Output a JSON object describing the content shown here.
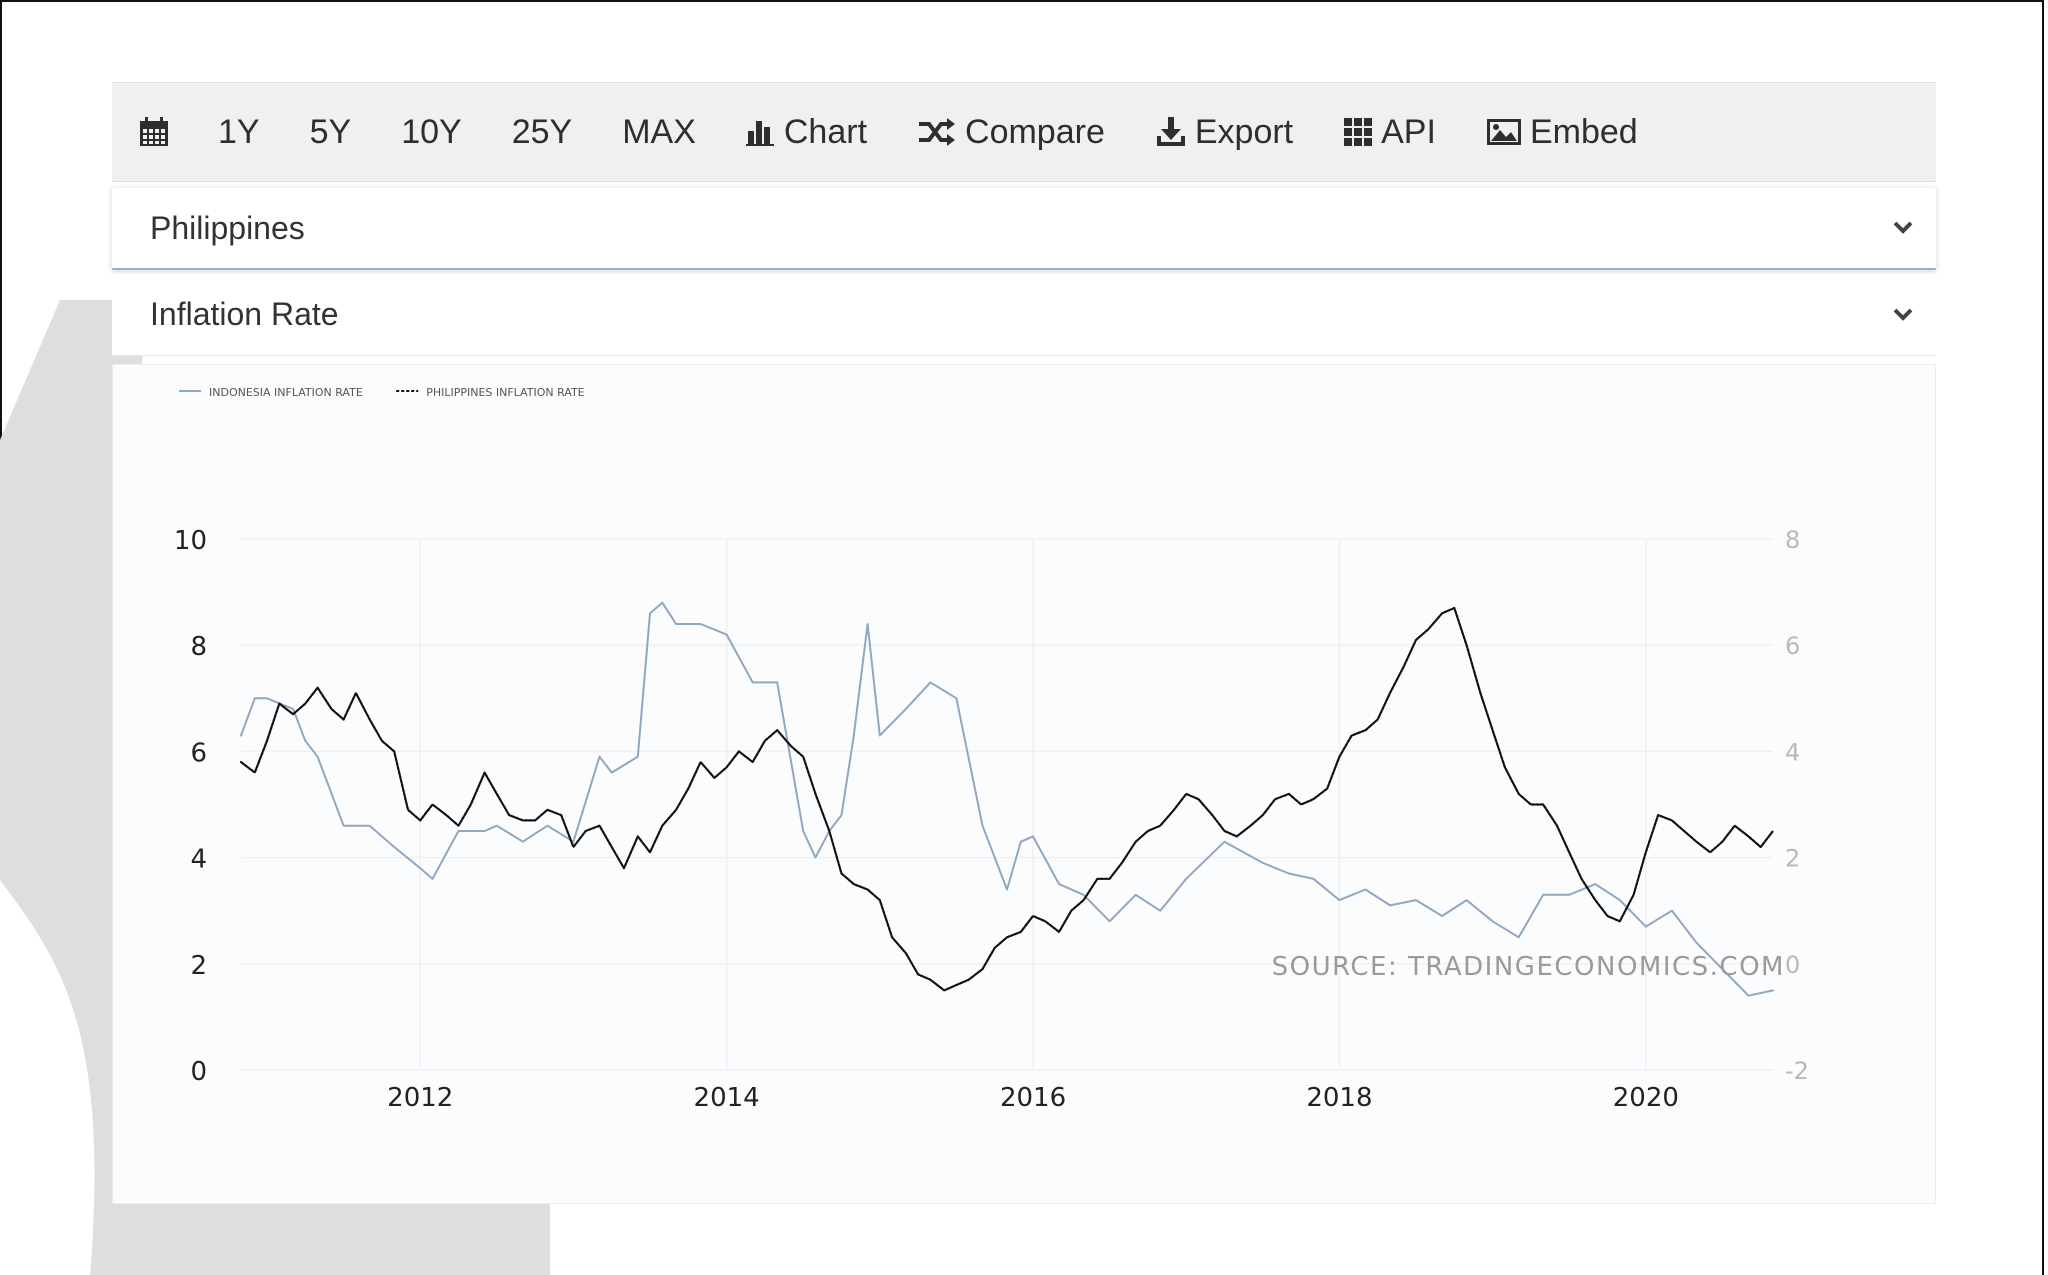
{
  "toolbar": {
    "calendar_icon": "calendar-icon",
    "ranges": [
      "1Y",
      "5Y",
      "10Y",
      "25Y",
      "MAX"
    ],
    "chart_label": "Chart",
    "compare_label": "Compare",
    "export_label": "Export",
    "api_label": "API",
    "embed_label": "Embed"
  },
  "selectors": {
    "country": "Philippines",
    "indicator": "Inflation Rate"
  },
  "colors": {
    "indonesia_line": "#8ea8c3",
    "philippines_line": "#111111",
    "grid": "#eef0f3"
  },
  "chart_data": {
    "type": "line",
    "legend_placement": "top-left",
    "source": "SOURCE: TRADINGECONOMICS.COM",
    "x_ticks": [
      "2012",
      "2014",
      "2016",
      "2018",
      "2020"
    ],
    "xlim": [
      2010.83,
      2020.83
    ],
    "ylim_left": [
      0,
      10
    ],
    "ylim_right": [
      -2,
      8
    ],
    "yticks_left": [
      "0",
      "2",
      "4",
      "6",
      "8",
      "10"
    ],
    "yticks_right": [
      "-2",
      "0",
      "2",
      "4",
      "6",
      "8"
    ],
    "grid": true,
    "series": [
      {
        "name": "INDONESIA INFLATION RATE",
        "axis": "left",
        "style": "solid",
        "x": [
          2010.83,
          2010.92,
          2011.0,
          2011.17,
          2011.25,
          2011.33,
          2011.5,
          2011.67,
          2011.83,
          2012.0,
          2012.08,
          2012.25,
          2012.42,
          2012.5,
          2012.67,
          2012.83,
          2013.0,
          2013.17,
          2013.25,
          2013.42,
          2013.5,
          2013.58,
          2013.67,
          2013.83,
          2014.0,
          2014.17,
          2014.33,
          2014.5,
          2014.58,
          2014.67,
          2014.75,
          2014.83,
          2014.92,
          2015.0,
          2015.17,
          2015.33,
          2015.5,
          2015.67,
          2015.83,
          2015.92,
          2016.0,
          2016.17,
          2016.33,
          2016.5,
          2016.67,
          2016.83,
          2017.0,
          2017.25,
          2017.5,
          2017.67,
          2017.83,
          2018.0,
          2018.17,
          2018.33,
          2018.5,
          2018.67,
          2018.83,
          2019.0,
          2019.17,
          2019.33,
          2019.5,
          2019.67,
          2019.83,
          2020.0,
          2020.17,
          2020.33,
          2020.5,
          2020.67,
          2020.83
        ],
        "values": [
          6.3,
          7.0,
          7.0,
          6.8,
          6.2,
          5.9,
          4.6,
          4.6,
          4.2,
          3.8,
          3.6,
          4.5,
          4.5,
          4.6,
          4.3,
          4.6,
          4.3,
          5.9,
          5.6,
          5.9,
          8.6,
          8.8,
          8.4,
          8.4,
          8.2,
          7.3,
          7.3,
          4.5,
          4.0,
          4.5,
          4.8,
          6.3,
          8.4,
          6.3,
          6.8,
          7.3,
          7.0,
          4.6,
          3.4,
          4.3,
          4.4,
          3.5,
          3.3,
          2.8,
          3.3,
          3.0,
          3.6,
          4.3,
          3.9,
          3.7,
          3.6,
          3.2,
          3.4,
          3.1,
          3.2,
          2.9,
          3.2,
          2.8,
          2.5,
          3.3,
          3.3,
          3.5,
          3.2,
          2.7,
          3.0,
          2.4,
          1.9,
          1.4,
          1.5
        ]
      },
      {
        "name": "PHILIPPINES INFLATION RATE",
        "axis": "right",
        "style": "dotted",
        "x": [
          2010.83,
          2010.92,
          2011.0,
          2011.08,
          2011.17,
          2011.25,
          2011.33,
          2011.42,
          2011.5,
          2011.58,
          2011.67,
          2011.75,
          2011.83,
          2011.92,
          2012.0,
          2012.08,
          2012.17,
          2012.25,
          2012.33,
          2012.42,
          2012.5,
          2012.58,
          2012.67,
          2012.75,
          2012.83,
          2012.92,
          2013.0,
          2013.08,
          2013.17,
          2013.25,
          2013.33,
          2013.42,
          2013.5,
          2013.58,
          2013.67,
          2013.75,
          2013.83,
          2013.92,
          2014.0,
          2014.08,
          2014.17,
          2014.25,
          2014.33,
          2014.42,
          2014.5,
          2014.58,
          2014.67,
          2014.75,
          2014.83,
          2014.92,
          2015.0,
          2015.08,
          2015.17,
          2015.25,
          2015.33,
          2015.42,
          2015.5,
          2015.58,
          2015.67,
          2015.75,
          2015.83,
          2015.92,
          2016.0,
          2016.08,
          2016.17,
          2016.25,
          2016.33,
          2016.42,
          2016.5,
          2016.58,
          2016.67,
          2016.75,
          2016.83,
          2016.92,
          2017.0,
          2017.08,
          2017.17,
          2017.25,
          2017.33,
          2017.42,
          2017.5,
          2017.58,
          2017.67,
          2017.75,
          2017.83,
          2017.92,
          2018.0,
          2018.08,
          2018.17,
          2018.25,
          2018.33,
          2018.42,
          2018.5,
          2018.58,
          2018.67,
          2018.75,
          2018.83,
          2018.92,
          2019.0,
          2019.08,
          2019.17,
          2019.25,
          2019.33,
          2019.42,
          2019.5,
          2019.58,
          2019.67,
          2019.75,
          2019.83,
          2019.92,
          2020.0,
          2020.08,
          2020.17,
          2020.25,
          2020.33,
          2020.42,
          2020.5,
          2020.58,
          2020.67,
          2020.75,
          2020.83
        ],
        "values": [
          3.8,
          3.6,
          4.2,
          4.9,
          4.7,
          4.9,
          5.2,
          4.8,
          4.6,
          5.1,
          4.6,
          4.2,
          4.0,
          2.9,
          2.7,
          3.0,
          2.8,
          2.6,
          3.0,
          3.6,
          3.2,
          2.8,
          2.7,
          2.7,
          2.9,
          2.8,
          2.2,
          2.5,
          2.6,
          2.2,
          1.8,
          2.4,
          2.1,
          2.6,
          2.9,
          3.3,
          3.8,
          3.5,
          3.7,
          4.0,
          3.8,
          4.2,
          4.4,
          4.1,
          3.9,
          3.2,
          2.5,
          1.7,
          1.5,
          1.4,
          1.2,
          0.5,
          0.2,
          -0.2,
          -0.3,
          -0.5,
          -0.4,
          -0.3,
          -0.1,
          0.3,
          0.5,
          0.6,
          0.9,
          0.8,
          0.6,
          1.0,
          1.2,
          1.6,
          1.6,
          1.9,
          2.3,
          2.5,
          2.6,
          2.9,
          3.2,
          3.1,
          2.8,
          2.5,
          2.4,
          2.6,
          2.8,
          3.1,
          3.2,
          3.0,
          3.1,
          3.3,
          3.9,
          4.3,
          4.4,
          4.6,
          5.1,
          5.6,
          6.1,
          6.3,
          6.6,
          6.7,
          6.0,
          5.1,
          4.4,
          3.7,
          3.2,
          3.0,
          3.0,
          2.6,
          2.1,
          1.6,
          1.2,
          0.9,
          0.8,
          1.3,
          2.1,
          2.8,
          2.7,
          2.5,
          2.3,
          2.1,
          2.3,
          2.6,
          2.4,
          2.2,
          2.5
        ]
      }
    ]
  }
}
